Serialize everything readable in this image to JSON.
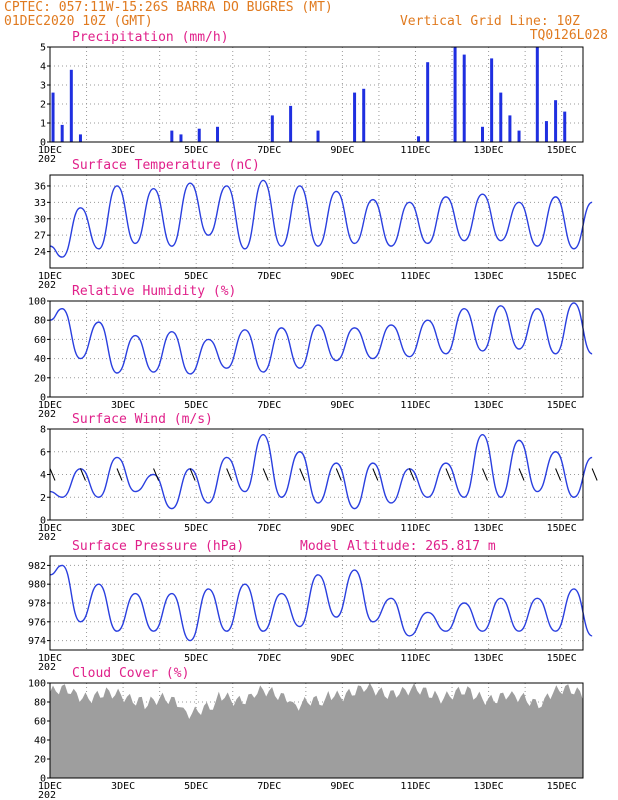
{
  "header": {
    "line1": "CPTEC:  057:11W-15:26S  BARRA DO BUGRES (MT)",
    "line2": "01DEC2020 10Z (GMT)",
    "grid_note": "Vertical Grid Line: 10Z",
    "code": "TQ0126L028"
  },
  "x_axis": {
    "labels": [
      "1DEC",
      "3DEC",
      "5DEC",
      "7DEC",
      "9DEC",
      "11DEC",
      "13DEC",
      "15DEC"
    ],
    "under_label": "202"
  },
  "colors": {
    "line": "#2a3fdf",
    "bar": "#1f2fe0",
    "cloud": "#9e9e9e",
    "title": "#e0208a",
    "header": "#e07a1f"
  },
  "chart_data": [
    {
      "type": "bar",
      "title": "Precipitation (mm/h)",
      "ylim": [
        0,
        5
      ],
      "yticks": [
        0,
        1,
        2,
        3,
        4,
        5
      ],
      "x": [
        "01DEC 12Z",
        "01DEC 18Z",
        "02DEC 00Z",
        "02DEC 06Z",
        "04DEC 18Z",
        "05DEC 00Z",
        "05DEC 12Z",
        "06DEC 00Z",
        "07DEC 12Z",
        "08DEC 00Z",
        "08DEC 18Z",
        "09DEC 18Z",
        "10DEC 00Z",
        "11DEC 12Z",
        "11DEC 18Z",
        "12DEC 12Z",
        "12DEC 18Z",
        "13DEC 06Z",
        "13DEC 12Z",
        "13DEC 18Z",
        "14DEC 00Z",
        "14DEC 06Z",
        "14DEC 18Z",
        "15DEC 00Z",
        "15DEC 06Z",
        "15DEC 12Z"
      ],
      "values": [
        2.6,
        0.9,
        3.8,
        0.4,
        0.6,
        0.4,
        0.7,
        0.8,
        1.4,
        1.9,
        0.6,
        2.6,
        2.8,
        0.3,
        4.2,
        5.0,
        4.6,
        0.8,
        4.4,
        2.6,
        1.4,
        0.6,
        5.0,
        1.1,
        2.2,
        1.6
      ]
    },
    {
      "type": "line",
      "title": "Surface Temperature (nC)",
      "ylim": [
        21,
        38
      ],
      "yticks": [
        24,
        27,
        30,
        33,
        36
      ],
      "x": [
        "01DEC 10Z",
        "01DEC 18Z",
        "02DEC 06Z",
        "02DEC 18Z",
        "03DEC 06Z",
        "03DEC 18Z",
        "04DEC 06Z",
        "04DEC 18Z",
        "05DEC 06Z",
        "05DEC 18Z",
        "06DEC 06Z",
        "06DEC 18Z",
        "07DEC 06Z",
        "07DEC 18Z",
        "08DEC 06Z",
        "08DEC 18Z",
        "09DEC 06Z",
        "09DEC 18Z",
        "10DEC 06Z",
        "10DEC 18Z",
        "11DEC 06Z",
        "11DEC 18Z",
        "12DEC 06Z",
        "12DEC 18Z",
        "13DEC 06Z",
        "13DEC 18Z",
        "14DEC 06Z",
        "14DEC 18Z",
        "15DEC 06Z",
        "15DEC 18Z",
        "16DEC 06Z"
      ],
      "values": [
        25,
        23,
        32,
        24.5,
        36,
        25.5,
        35.5,
        25,
        36.5,
        27,
        36,
        24.5,
        37,
        25,
        36,
        25,
        35,
        25.5,
        33.5,
        25,
        33,
        25.5,
        34,
        26,
        34.5,
        26,
        33,
        25,
        34,
        24.5,
        33
      ]
    },
    {
      "type": "line",
      "title": "Relative Humidity (%)",
      "ylim": [
        0,
        100
      ],
      "yticks": [
        0,
        20,
        40,
        60,
        80,
        100
      ],
      "x": [
        "01DEC 10Z",
        "01DEC 18Z",
        "02DEC 06Z",
        "02DEC 18Z",
        "03DEC 06Z",
        "03DEC 18Z",
        "04DEC 06Z",
        "04DEC 18Z",
        "05DEC 06Z",
        "05DEC 18Z",
        "06DEC 06Z",
        "06DEC 18Z",
        "07DEC 06Z",
        "07DEC 18Z",
        "08DEC 06Z",
        "08DEC 18Z",
        "09DEC 06Z",
        "09DEC 18Z",
        "10DEC 06Z",
        "10DEC 18Z",
        "11DEC 06Z",
        "11DEC 18Z",
        "12DEC 06Z",
        "12DEC 18Z",
        "13DEC 06Z",
        "13DEC 18Z",
        "14DEC 06Z",
        "14DEC 18Z",
        "15DEC 06Z",
        "15DEC 18Z",
        "16DEC 06Z"
      ],
      "values": [
        80,
        92,
        40,
        78,
        25,
        64,
        26,
        68,
        24,
        60,
        30,
        70,
        26,
        72,
        30,
        75,
        38,
        72,
        40,
        75,
        42,
        80,
        45,
        92,
        48,
        95,
        50,
        92,
        45,
        98,
        45
      ]
    },
    {
      "type": "line",
      "title": "Surface Wind (m/s)",
      "ylim": [
        0,
        8
      ],
      "yticks": [
        0,
        2,
        4,
        6,
        8
      ],
      "x": [
        "01DEC 10Z",
        "01DEC 18Z",
        "02DEC 06Z",
        "02DEC 18Z",
        "03DEC 06Z",
        "03DEC 18Z",
        "04DEC 06Z",
        "04DEC 18Z",
        "05DEC 06Z",
        "05DEC 18Z",
        "06DEC 06Z",
        "06DEC 18Z",
        "07DEC 06Z",
        "07DEC 18Z",
        "08DEC 06Z",
        "08DEC 18Z",
        "09DEC 06Z",
        "09DEC 18Z",
        "10DEC 06Z",
        "10DEC 18Z",
        "11DEC 06Z",
        "11DEC 18Z",
        "12DEC 06Z",
        "12DEC 18Z",
        "13DEC 06Z",
        "13DEC 18Z",
        "14DEC 06Z",
        "14DEC 18Z",
        "15DEC 06Z",
        "15DEC 18Z",
        "16DEC 06Z"
      ],
      "values": [
        2.5,
        2,
        4.5,
        2,
        5.5,
        2.5,
        4,
        1,
        4.5,
        1.5,
        5.5,
        2.5,
        7.5,
        2,
        6,
        1.5,
        5,
        1,
        5,
        1.5,
        4.5,
        2,
        5,
        2,
        7.5,
        2,
        7,
        2.5,
        6,
        2,
        5.5
      ]
    },
    {
      "type": "line",
      "title": "Surface Pressure (hPa)",
      "subtitle": "Model Altitude: 265.817 m",
      "ylim": [
        973,
        983
      ],
      "yticks": [
        974,
        976,
        978,
        980,
        982
      ],
      "x": [
        "01DEC 10Z",
        "01DEC 18Z",
        "02DEC 06Z",
        "02DEC 18Z",
        "03DEC 06Z",
        "03DEC 18Z",
        "04DEC 06Z",
        "04DEC 18Z",
        "05DEC 06Z",
        "05DEC 18Z",
        "06DEC 06Z",
        "06DEC 18Z",
        "07DEC 06Z",
        "07DEC 18Z",
        "08DEC 06Z",
        "08DEC 18Z",
        "09DEC 06Z",
        "09DEC 18Z",
        "10DEC 06Z",
        "10DEC 18Z",
        "11DEC 06Z",
        "11DEC 18Z",
        "12DEC 06Z",
        "12DEC 18Z",
        "13DEC 06Z",
        "13DEC 18Z",
        "14DEC 06Z",
        "14DEC 18Z",
        "15DEC 06Z",
        "15DEC 18Z",
        "16DEC 06Z"
      ],
      "values": [
        981,
        982,
        976,
        980,
        975,
        979,
        975,
        979,
        974,
        979.5,
        975,
        980,
        975,
        979,
        975.5,
        981,
        976.5,
        981.5,
        976,
        978.5,
        974.5,
        977,
        975,
        978,
        975,
        978.5,
        975,
        978.5,
        975,
        979.5,
        974.5
      ]
    },
    {
      "type": "area",
      "title": "Cloud Cover (%)",
      "ylim": [
        0,
        100
      ],
      "yticks": [
        0,
        20,
        40,
        60,
        80,
        100
      ],
      "x": [
        "01DEC",
        "02DEC",
        "03DEC",
        "04DEC",
        "05DEC",
        "06DEC",
        "07DEC",
        "08DEC",
        "09DEC",
        "10DEC",
        "11DEC",
        "12DEC",
        "13DEC",
        "14DEC",
        "15DEC",
        "16DEC"
      ],
      "values": [
        90,
        88,
        85,
        80,
        72,
        85,
        88,
        78,
        90,
        92,
        90,
        88,
        86,
        82,
        90,
        90
      ]
    }
  ]
}
